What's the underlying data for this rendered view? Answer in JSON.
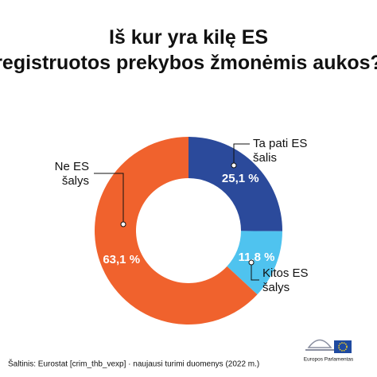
{
  "chart_data": {
    "type": "donut",
    "title": "Iš kur yra kilę ES registruotos prekybos žmonėmis aukos?",
    "categories": [
      "Ta pati ES šalis",
      "Kitos ES šalys",
      "Ne ES šalys"
    ],
    "values": [
      25.1,
      11.8,
      63.1
    ],
    "value_labels": [
      "25,1 %",
      "11,8 %",
      "63,1 %"
    ],
    "colors": [
      "#2b4a9b",
      "#4fc3ef",
      "#f0622d"
    ],
    "source": "Šaltinis: Eurostat [crim_thb_vexp] · naujausi turimi duomenys (2022 m.)",
    "logo_text": "Europos Parlamentas"
  }
}
